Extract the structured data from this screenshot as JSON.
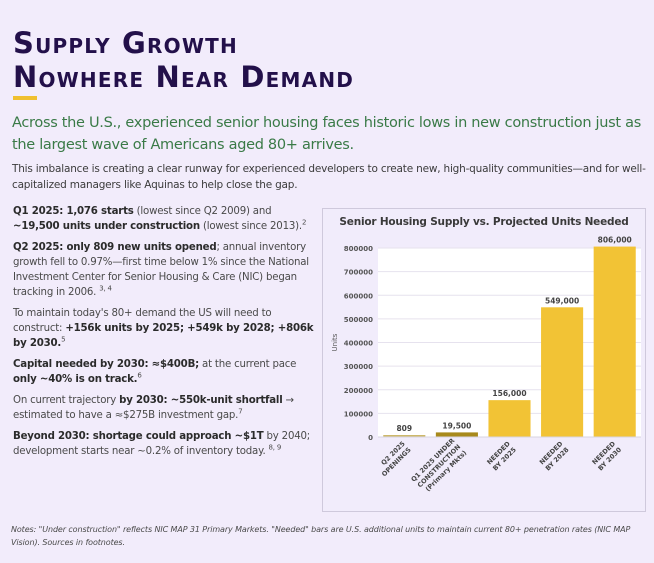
{
  "title": {
    "line1": "Supply Growth",
    "line2": "Nowhere Near Demand"
  },
  "lede": "Across the U.S., experienced senior housing faces historic lows in new construction just as the largest wave of Americans aged 80+ arrives.",
  "sublede": "This imbalance is creating a clear runway for experienced developers to create new, high-quality communities—and for well-capitalized managers like Aquinas to help close the gap.",
  "bullets": [
    {
      "parts": [
        {
          "b": true,
          "t": "Q1 2025: 1,076 starts"
        },
        {
          "b": false,
          "t": " (lowest since Q2 2009) and "
        },
        {
          "b": true,
          "t": "~19,500 units under construction"
        },
        {
          "b": false,
          "t": " (lowest since 2013)."
        }
      ],
      "sup": "2"
    },
    {
      "parts": [
        {
          "b": true,
          "t": "Q2 2025: only 809 new units opened"
        },
        {
          "b": false,
          "t": "; annual inventory growth fell to 0.97%—first time below 1% since the National Investment Center for Senior Housing & Care (NIC) began tracking in 2006. "
        }
      ],
      "sup": "3, 4"
    },
    {
      "parts": [
        {
          "b": false,
          "t": "To maintain today's 80+ demand the US will need to construct: "
        },
        {
          "b": true,
          "t": "+156k units by 2025; +549k by 2028; +806k by 2030."
        }
      ],
      "sup": "5"
    },
    {
      "parts": [
        {
          "b": true,
          "t": "Capital needed by 2030: ≈$400B;"
        },
        {
          "b": false,
          "t": " at the current pace "
        },
        {
          "b": true,
          "t": "only ~40% is on track."
        }
      ],
      "sup": "6"
    },
    {
      "parts": [
        {
          "b": false,
          "t": "On current trajectory "
        },
        {
          "b": true,
          "t": "by 2030: ~550k-unit shortfall"
        },
        {
          "b": false,
          "t": " → estimated to have a ≈$275B investment gap."
        }
      ],
      "sup": "7"
    },
    {
      "parts": [
        {
          "b": true,
          "t": "Beyond 2030: shortage could approach ~$1T"
        },
        {
          "b": false,
          "t": " by 2040; development starts near ~0.2% of inventory today. "
        }
      ],
      "sup": "8, 9"
    }
  ],
  "notes": "Notes: \"Under construction\" reflects NIC MAP 31 Primary Markets. \"Needed\" bars are U.S. additional units to maintain current 80+ penetration rates (NIC MAP Vision). Sources in footnotes.",
  "colors": {
    "title": "#23104a",
    "accent": "#f0c030",
    "lede": "#3a7a47",
    "bar_light": "#cdb86a",
    "bar_dark": "#a88a1c",
    "bar_main": "#f2c335"
  },
  "chart_data": {
    "type": "bar",
    "title": "Senior Housing Supply vs. Projected Units Needed",
    "xlabel": "",
    "ylabel": "Units",
    "ylim": [
      0,
      800000
    ],
    "yticks": [
      0,
      100000,
      200000,
      300000,
      400000,
      500000,
      600000,
      700000,
      800000
    ],
    "grid": true,
    "categories": [
      [
        "Q2 2025",
        "OPENINGS"
      ],
      [
        "Q1 2025 UNDER",
        "CONSTRUCTION",
        "(Primary Mkts)"
      ],
      [
        "NEEDED",
        "BY 2025"
      ],
      [
        "NEEDED",
        "BY 2028"
      ],
      [
        "NEEDED",
        "BY 2030"
      ]
    ],
    "values": [
      809,
      19500,
      156000,
      549000,
      806000
    ],
    "data_labels": [
      "809",
      "19,500",
      "156,000",
      "549,000",
      "806,000"
    ],
    "bar_colors": [
      "#cdb86a",
      "#a88a1c",
      "#f2c335",
      "#f2c335",
      "#f2c335"
    ]
  }
}
